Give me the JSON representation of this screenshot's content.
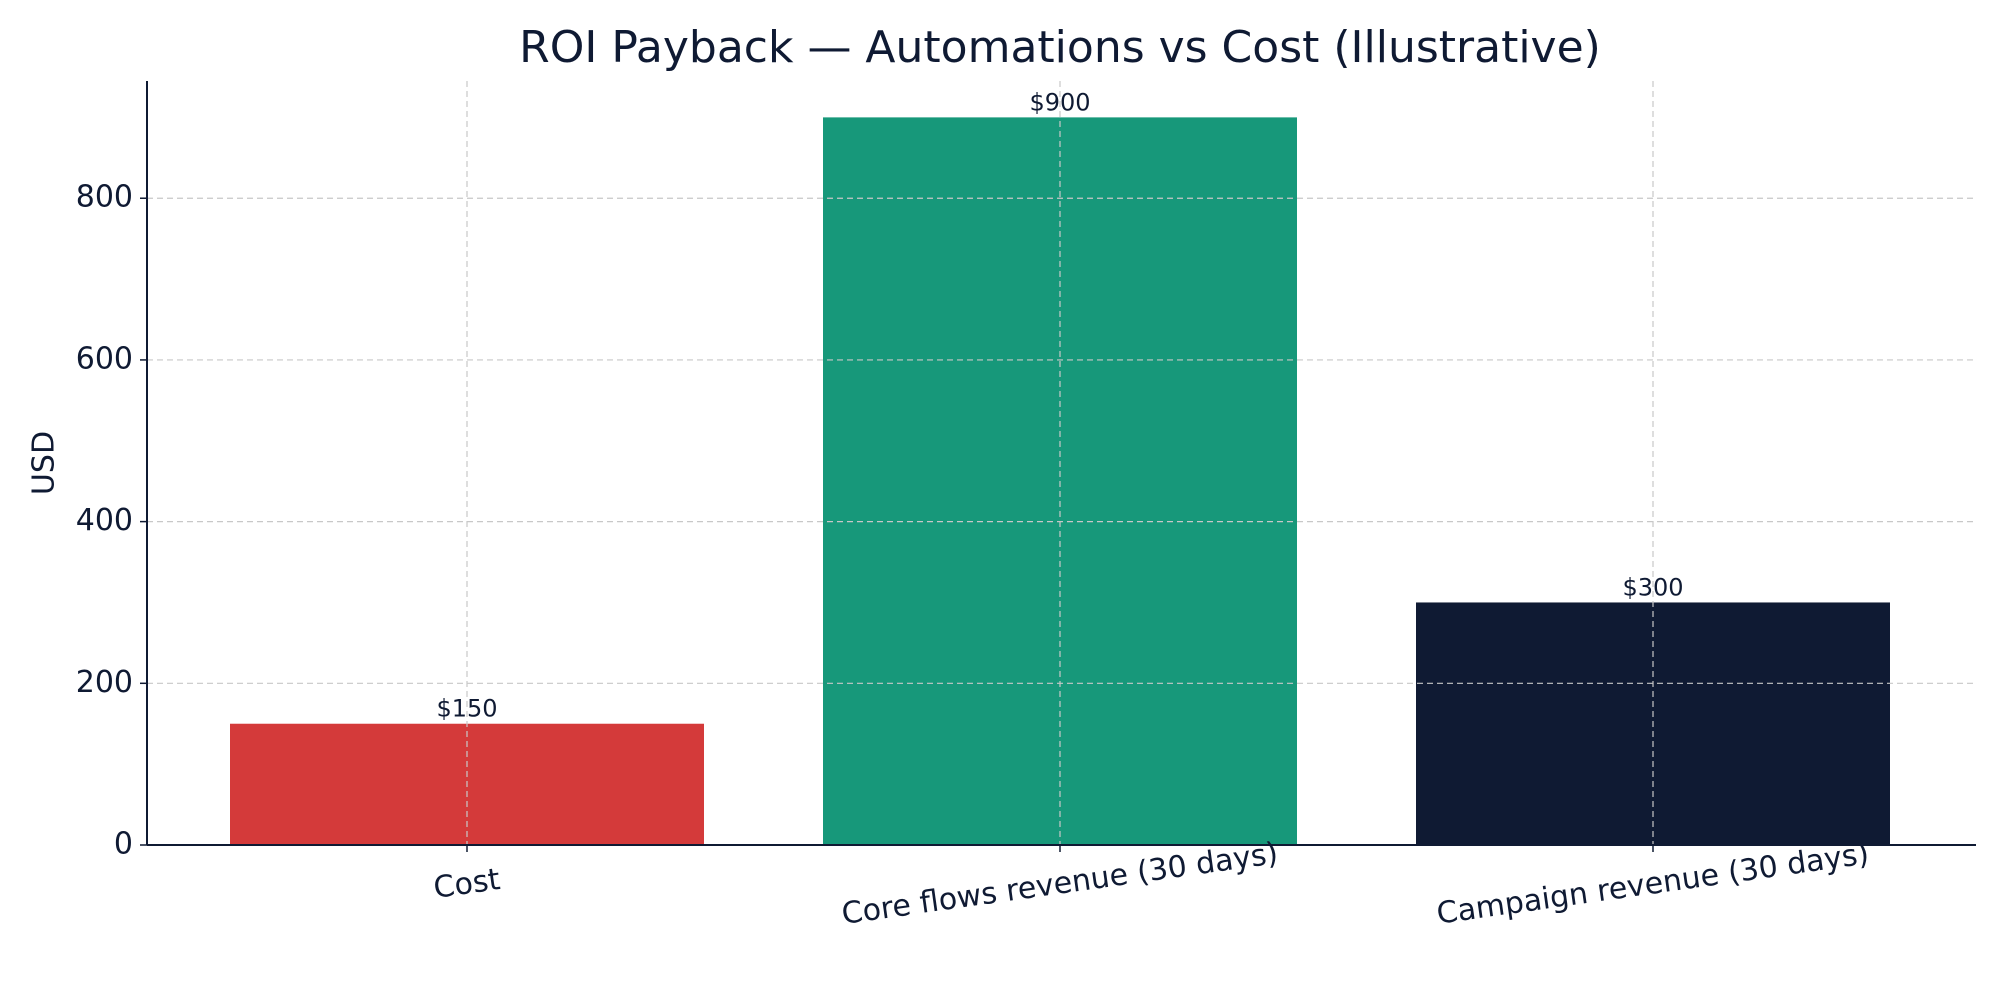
{
  "chart_data": {
    "type": "bar",
    "title": "ROI Payback — Automations vs Cost (Illustrative)",
    "y_label": "USD",
    "categories": [
      "Cost",
      "Core flows revenue (30 days)",
      "Campaign revenue (30 days)"
    ],
    "values": [
      150,
      900,
      300
    ],
    "value_labels": [
      "$150",
      "$900",
      "$300"
    ],
    "colors": [
      "#d43a3a",
      "#17987a",
      "#0f1a33"
    ],
    "ylim": [
      0,
      945
    ],
    "yticks": [
      0,
      200,
      400,
      600,
      800
    ],
    "grid": true
  }
}
